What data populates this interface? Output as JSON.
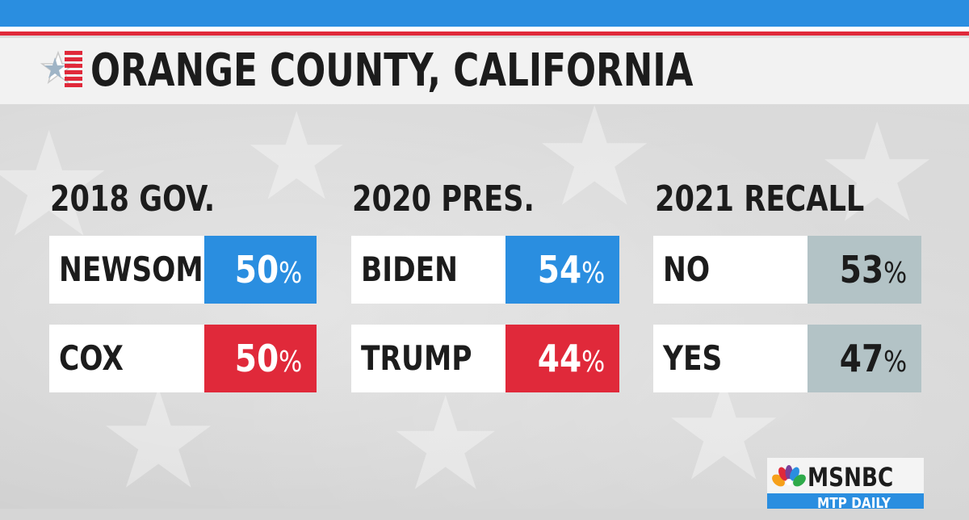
{
  "title": "ORANGE COUNTY, CALIFORNIA",
  "colors": {
    "dem_blue": "#2a8ee0",
    "rep_red": "#e0293a",
    "recall_gray": "#b3c3c6",
    "text_dark": "#1c1c1c"
  },
  "columns": [
    {
      "title": "2018 GOV.",
      "rows": [
        {
          "name": "NEWSOM",
          "value": "50",
          "unit": "%",
          "color": "#2a8ee0",
          "text_color": "#ffffff"
        },
        {
          "name": "COX",
          "value": "50",
          "unit": "%",
          "color": "#e0293a",
          "text_color": "#ffffff"
        }
      ]
    },
    {
      "title": "2020 PRES.",
      "rows": [
        {
          "name": "BIDEN",
          "value": "54",
          "unit": "%",
          "color": "#2a8ee0",
          "text_color": "#ffffff"
        },
        {
          "name": "TRUMP",
          "value": "44",
          "unit": "%",
          "color": "#e0293a",
          "text_color": "#ffffff"
        }
      ]
    },
    {
      "title": "2021 RECALL",
      "rows": [
        {
          "name": "NO",
          "value": "53",
          "unit": "%",
          "color": "#b3c3c6",
          "text_color": "#1c1c1c"
        },
        {
          "name": "YES",
          "value": "47",
          "unit": "%",
          "color": "#b3c3c6",
          "text_color": "#1c1c1c"
        }
      ]
    }
  ],
  "logo": {
    "name": "MSNBC",
    "sub": "MTP DAILY"
  }
}
